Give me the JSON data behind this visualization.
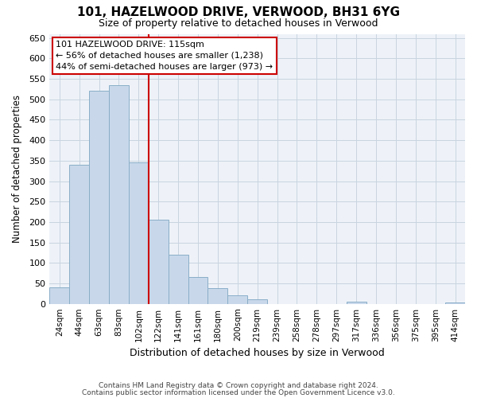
{
  "title": "101, HAZELWOOD DRIVE, VERWOOD, BH31 6YG",
  "subtitle": "Size of property relative to detached houses in Verwood",
  "xlabel": "Distribution of detached houses by size in Verwood",
  "ylabel": "Number of detached properties",
  "bar_labels": [
    "24sqm",
    "44sqm",
    "63sqm",
    "83sqm",
    "102sqm",
    "122sqm",
    "141sqm",
    "161sqm",
    "180sqm",
    "200sqm",
    "219sqm",
    "239sqm",
    "258sqm",
    "278sqm",
    "297sqm",
    "317sqm",
    "336sqm",
    "356sqm",
    "375sqm",
    "395sqm",
    "414sqm"
  ],
  "bar_values": [
    40,
    340,
    520,
    535,
    345,
    205,
    120,
    65,
    38,
    20,
    12,
    0,
    0,
    0,
    0,
    5,
    0,
    0,
    0,
    0,
    3
  ],
  "bar_color": "#c8d8ea",
  "bar_edgecolor": "#8aaec8",
  "vline_x": 4.5,
  "vline_color": "#cc0000",
  "ann_line1": "101 HAZELWOOD DRIVE: 115sqm",
  "ann_line2": "← 56% of detached houses are smaller (1,238)",
  "ann_line3": "44% of semi-detached houses are larger (973) →",
  "ann_box_facecolor": "#ffffff",
  "ann_box_edgecolor": "#cc0000",
  "grid_color": "#c8d4e0",
  "bg_color": "#eef2f8",
  "ylim": [
    0,
    660
  ],
  "yticks": [
    0,
    50,
    100,
    150,
    200,
    250,
    300,
    350,
    400,
    450,
    500,
    550,
    600,
    650
  ],
  "footer1": "Contains HM Land Registry data © Crown copyright and database right 2024.",
  "footer2": "Contains public sector information licensed under the Open Government Licence v3.0."
}
